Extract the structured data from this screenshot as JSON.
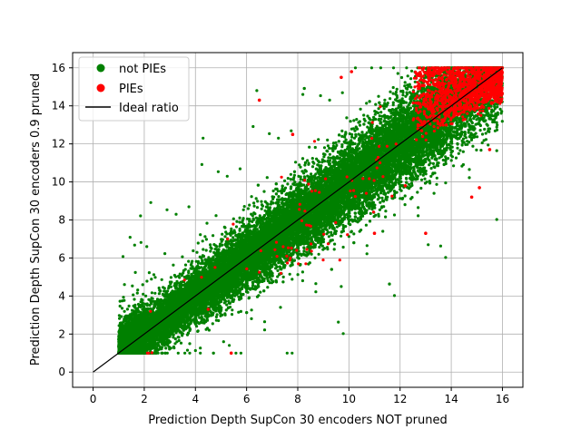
{
  "chart_data": {
    "type": "scatter",
    "title": "",
    "xlabel": "Prediction Depth SupCon 30 encoders NOT pruned",
    "ylabel": "Prediction Depth SupCon 30 encoders 0.9 pruned",
    "xlim": [
      -0.8,
      16.8
    ],
    "ylim": [
      -0.8,
      16.8
    ],
    "xticks": [
      0,
      2,
      4,
      6,
      8,
      10,
      12,
      14,
      16
    ],
    "yticks": [
      0,
      2,
      4,
      6,
      8,
      10,
      12,
      14,
      16
    ],
    "grid": true,
    "legend_position": "upper-left",
    "series": [
      {
        "name": "not PIEs",
        "color": "#008000",
        "marker": "circle",
        "points_sample": [
          [
            1,
            1
          ],
          [
            1.2,
            1.5
          ],
          [
            1.5,
            2.3
          ],
          [
            1.8,
            1.2
          ],
          [
            2,
            2.1
          ],
          [
            2.5,
            3.2
          ],
          [
            3,
            3.5
          ],
          [
            3.2,
            2.4
          ],
          [
            3.5,
            4.1
          ],
          [
            4,
            3.9
          ],
          [
            4.2,
            5.1
          ],
          [
            4.5,
            4.3
          ],
          [
            5,
            5.4
          ],
          [
            5.2,
            6.2
          ],
          [
            5.5,
            4.8
          ],
          [
            6,
            6.3
          ],
          [
            6.2,
            7.1
          ],
          [
            6.5,
            5.6
          ],
          [
            7,
            7.2
          ],
          [
            7.3,
            8.1
          ],
          [
            7.5,
            6.6
          ],
          [
            8,
            8.2
          ],
          [
            8.3,
            9.3
          ],
          [
            8.6,
            7.5
          ],
          [
            9,
            9.1
          ],
          [
            9.3,
            10.2
          ],
          [
            9.6,
            8.6
          ],
          [
            10,
            10.3
          ],
          [
            10.3,
            11.2
          ],
          [
            10.6,
            9.4
          ],
          [
            11,
            11.2
          ],
          [
            11.3,
            12.3
          ],
          [
            11.6,
            10.7
          ],
          [
            12,
            12.4
          ],
          [
            12.3,
            13.2
          ],
          [
            12.6,
            11.5
          ],
          [
            13,
            13.3
          ],
          [
            13.3,
            14.4
          ],
          [
            13.6,
            12.6
          ],
          [
            14,
            14.2
          ],
          [
            14.3,
            15.3
          ],
          [
            14.6,
            13.5
          ],
          [
            15,
            15.2
          ],
          [
            15.5,
            15.8
          ],
          [
            16,
            16
          ],
          [
            2.1,
            6.6
          ],
          [
            4.3,
            12.3
          ],
          [
            6.4,
            14.8
          ],
          [
            8.2,
            14.6
          ],
          [
            13.1,
            6.7
          ],
          [
            9.7,
            4.5
          ],
          [
            5.1,
            1.6
          ]
        ],
        "generated_density": [
          [
            1,
            2,
            3200
          ],
          [
            2,
            4,
            2200
          ],
          [
            4,
            6,
            2600
          ],
          [
            6,
            8,
            3000
          ],
          [
            8,
            10,
            3000
          ],
          [
            10,
            12,
            2900
          ],
          [
            12,
            14,
            2600
          ],
          [
            14,
            16,
            1600
          ]
        ]
      },
      {
        "name": "PIEs",
        "color": "#ff0000",
        "marker": "circle",
        "points_sample": [
          [
            5.4,
            1
          ],
          [
            4.5,
            3.3
          ],
          [
            6.5,
            14.3
          ],
          [
            7.8,
            12.5
          ],
          [
            9.7,
            15.5
          ],
          [
            10.1,
            15.8
          ],
          [
            11,
            7.3
          ],
          [
            12.2,
            9.8
          ],
          [
            13,
            7.3
          ],
          [
            14.8,
            9.2
          ],
          [
            15.1,
            9.7
          ],
          [
            15.5,
            11.7
          ],
          [
            13.8,
            13
          ],
          [
            14.2,
            14.8
          ],
          [
            15,
            15.5
          ],
          [
            15.8,
            15.7
          ]
        ],
        "generated_density": [
          [
            12.5,
            16,
            1300
          ],
          [
            7,
            12,
            60
          ],
          [
            2,
            7,
            12
          ]
        ]
      }
    ],
    "reference_line": {
      "name": "Ideal ratio",
      "color": "#000000",
      "x": [
        0,
        16
      ],
      "y": [
        0,
        16
      ]
    }
  }
}
